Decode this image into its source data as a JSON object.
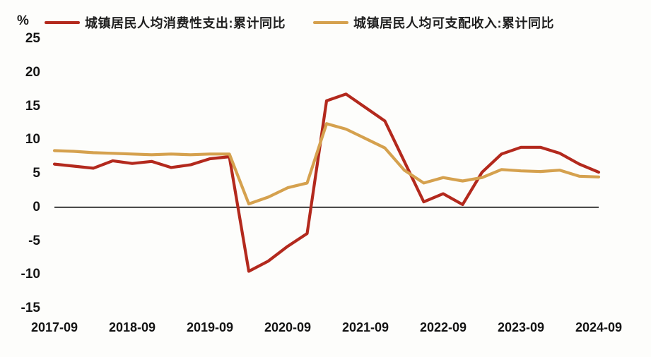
{
  "unit_label": "%",
  "chart_data": {
    "type": "line",
    "title": "",
    "xlabel": "",
    "ylabel": "%",
    "ylim": [
      -15,
      25
    ],
    "grid": false,
    "legend_position": "top",
    "y_ticks": [
      25,
      20,
      15,
      10,
      5,
      0,
      -5,
      -10,
      -15
    ],
    "x_tick_labels": [
      "2017-09",
      "2018-09",
      "2019-09",
      "2020-09",
      "2021-09",
      "2022-09",
      "2023-09",
      "2024-09"
    ],
    "x": [
      "2017-09",
      "2017-12",
      "2018-03",
      "2018-06",
      "2018-09",
      "2018-12",
      "2019-03",
      "2019-06",
      "2019-09",
      "2019-12",
      "2020-03",
      "2020-06",
      "2020-09",
      "2020-12",
      "2021-03",
      "2021-06",
      "2021-09",
      "2021-12",
      "2022-03",
      "2022-06",
      "2022-09",
      "2022-12",
      "2023-03",
      "2023-06",
      "2023-09",
      "2023-12",
      "2024-03",
      "2024-06",
      "2024-09"
    ],
    "series": [
      {
        "name": "城镇居民人均消费性支出:累计同比",
        "color": "#b3291d",
        "values": [
          6.4,
          6.1,
          5.8,
          6.9,
          6.5,
          6.8,
          5.9,
          6.3,
          7.2,
          7.5,
          -9.5,
          -8.0,
          -5.8,
          -3.9,
          15.8,
          16.8,
          14.8,
          12.8,
          6.8,
          0.8,
          2.0,
          0.4,
          5.2,
          7.9,
          8.9,
          8.9,
          8.0,
          6.4,
          5.2
        ]
      },
      {
        "name": "城镇居民人均可支配收入:累计同比",
        "color": "#d5a14e",
        "values": [
          8.4,
          8.3,
          8.1,
          8.0,
          7.9,
          7.8,
          7.9,
          7.8,
          7.9,
          7.9,
          0.5,
          1.5,
          2.9,
          3.6,
          12.4,
          11.6,
          10.2,
          8.8,
          5.5,
          3.6,
          4.4,
          3.9,
          4.4,
          5.6,
          5.4,
          5.3,
          5.5,
          4.6,
          4.5
        ]
      }
    ],
    "zero_line_color": "#1a1a1a"
  }
}
